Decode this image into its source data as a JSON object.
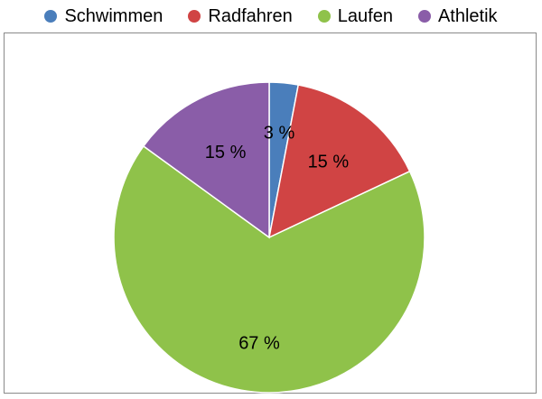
{
  "chart_data": {
    "type": "pie",
    "categories": [
      "Schwimmen",
      "Radfahren",
      "Laufen",
      "Athletik"
    ],
    "values": [
      3,
      15,
      67,
      15
    ],
    "labels": [
      "3 %",
      "15 %",
      "67 %",
      "15 %"
    ],
    "colors": [
      "#4a7ebb",
      "#d04444",
      "#8fc24a",
      "#8a5da8"
    ],
    "legend_position": "top"
  }
}
